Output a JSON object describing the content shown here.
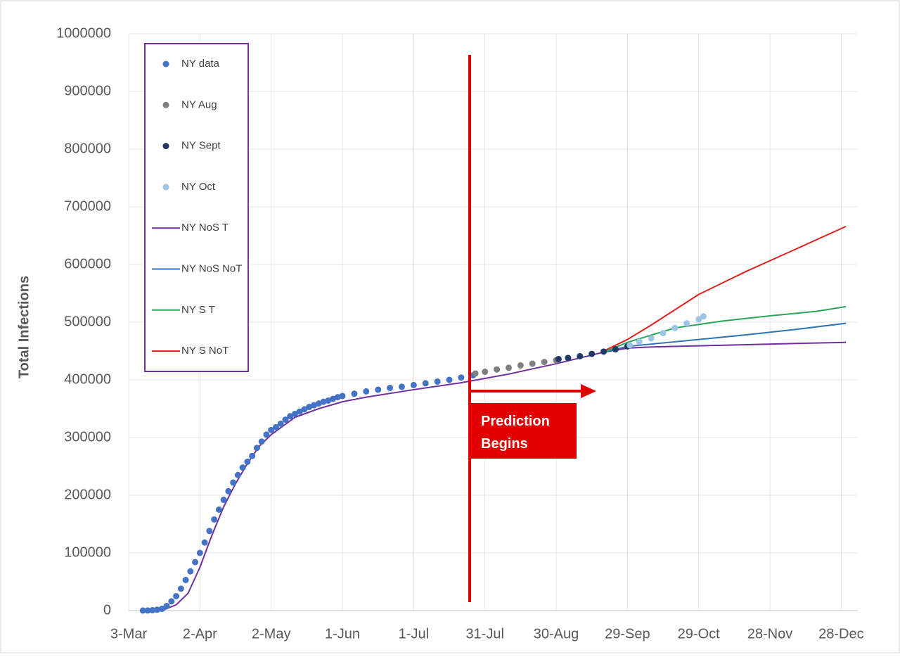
{
  "chart_data": {
    "type": "scatter-line",
    "y_label": "Total Infections",
    "annotation": "Prediction Begins",
    "xlim": [
      0,
      307
    ],
    "ylim": [
      0,
      1000000
    ],
    "xticks": [
      {
        "value": 0,
        "label": "3-Mar"
      },
      {
        "value": 30,
        "label": "2-Apr"
      },
      {
        "value": 60,
        "label": "2-May"
      },
      {
        "value": 90,
        "label": "1-Jun"
      },
      {
        "value": 120,
        "label": "1-Jul"
      },
      {
        "value": 150,
        "label": "31-Jul"
      },
      {
        "value": 180,
        "label": "30-Aug"
      },
      {
        "value": 210,
        "label": "29-Sep"
      },
      {
        "value": 240,
        "label": "29-Oct"
      },
      {
        "value": 270,
        "label": "28-Nov"
      },
      {
        "value": 300,
        "label": "28-Dec"
      }
    ],
    "yticks": [
      0,
      100000,
      200000,
      300000,
      400000,
      500000,
      600000,
      700000,
      800000,
      900000,
      1000000
    ],
    "grid": true,
    "series": [
      {
        "name": "NY data",
        "kind": "points",
        "color": "#4472c4",
        "x": [
          6,
          8,
          10,
          12,
          14,
          16,
          18,
          20,
          22,
          24,
          26,
          28,
          30,
          32,
          34,
          36,
          38,
          40,
          42,
          44,
          46,
          48,
          50,
          52,
          54,
          56,
          58,
          60,
          62,
          64,
          66,
          68,
          70,
          72,
          74,
          76,
          78,
          80,
          82,
          84,
          86,
          88,
          90,
          95,
          100,
          105,
          110,
          115,
          120,
          125,
          130,
          135,
          140,
          145
        ],
        "values": [
          100,
          200,
          700,
          1500,
          3000,
          8000,
          16000,
          25000,
          38000,
          53000,
          68000,
          84000,
          100000,
          118000,
          138000,
          158000,
          175000,
          192000,
          207000,
          222000,
          235000,
          248000,
          258000,
          268000,
          282000,
          293000,
          305000,
          313000,
          318000,
          324000,
          331000,
          337000,
          341000,
          345000,
          349000,
          353000,
          356000,
          359000,
          362000,
          364000,
          367000,
          370000,
          372000,
          376000,
          380000,
          383000,
          386000,
          388000,
          391000,
          394000,
          397000,
          400000,
          404000,
          408000
        ]
      },
      {
        "name": "NY Aug",
        "kind": "points",
        "color": "#7f7f7f",
        "x": [
          146,
          150,
          155,
          160,
          165,
          170,
          175,
          180
        ],
        "values": [
          411000,
          414000,
          418000,
          421000,
          425000,
          428000,
          431000,
          434000
        ]
      },
      {
        "name": "NY Sept",
        "kind": "points",
        "color": "#1f3864",
        "x": [
          181,
          185,
          190,
          195,
          200,
          205,
          210
        ],
        "values": [
          436000,
          438000,
          441000,
          445000,
          449000,
          453000,
          458000
        ]
      },
      {
        "name": "NY Oct",
        "kind": "points",
        "color": "#9dc3e6",
        "x": [
          211,
          215,
          220,
          225,
          230,
          235,
          240,
          242
        ],
        "values": [
          460000,
          466000,
          472000,
          481000,
          490000,
          498000,
          505000,
          510000
        ]
      },
      {
        "name": "NY NoS T",
        "kind": "line",
        "color": "#7030a0",
        "x": [
          14,
          20,
          25,
          30,
          35,
          40,
          45,
          50,
          55,
          60,
          65,
          70,
          80,
          90,
          100,
          120,
          140,
          160,
          180,
          200,
          210,
          220,
          240,
          260,
          280,
          302
        ],
        "values": [
          0,
          10000,
          30000,
          75000,
          130000,
          180000,
          220000,
          255000,
          285000,
          305000,
          320000,
          335000,
          350000,
          362000,
          370000,
          383000,
          395000,
          410000,
          428000,
          448000,
          455000,
          457000,
          459000,
          461000,
          463000,
          465000
        ]
      },
      {
        "name": "NY NoS NoT",
        "kind": "line",
        "color": "#2e75b6",
        "x": [
          200,
          210,
          240,
          260,
          280,
          302
        ],
        "values": [
          448000,
          458000,
          470000,
          478000,
          487000,
          498000
        ]
      },
      {
        "name": "NY S T",
        "kind": "line",
        "color": "#2aa55a",
        "x": [
          200,
          210,
          230,
          250,
          270,
          290,
          302
        ],
        "values": [
          448000,
          465000,
          490000,
          502000,
          511000,
          519000,
          527000
        ]
      },
      {
        "name": "NY S NoT",
        "kind": "line",
        "color": "#e0201c",
        "x": [
          200,
          210,
          220,
          240,
          260,
          280,
          302
        ],
        "values": [
          450000,
          470000,
          495000,
          548000,
          588000,
          625000,
          666000
        ]
      }
    ]
  }
}
